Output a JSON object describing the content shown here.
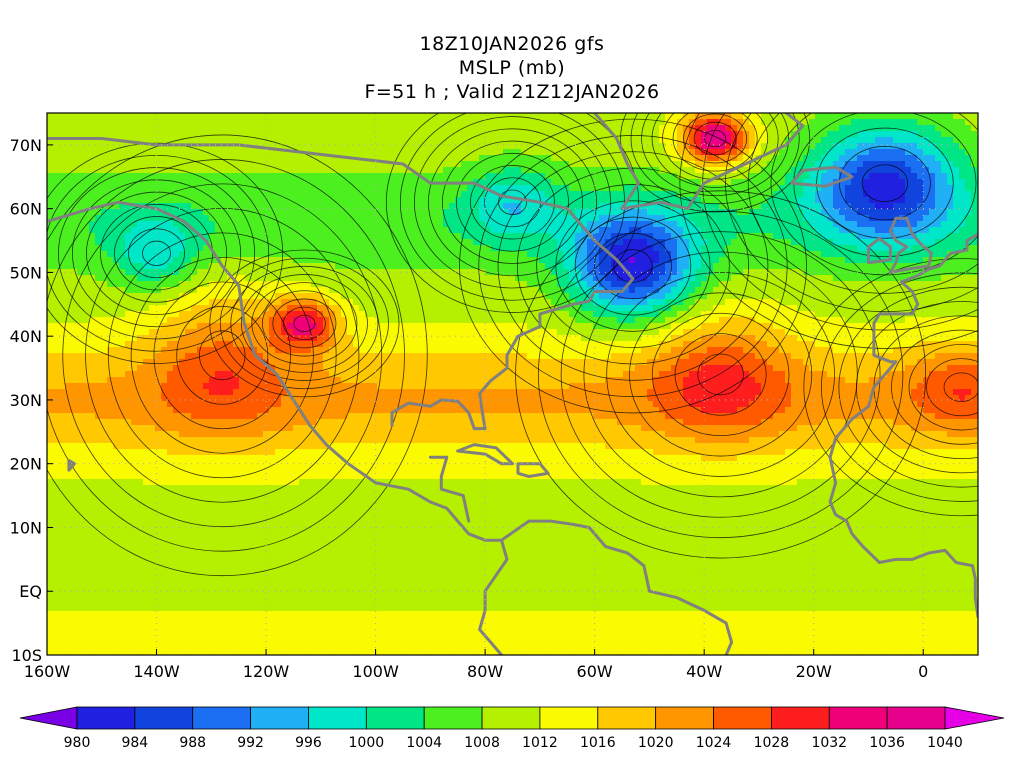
{
  "header": {
    "line1": "18Z10JAN2026 gfs",
    "line2": "MSLP (mb)",
    "line3": "F=51 h ; Valid 21Z12JAN2026"
  },
  "map": {
    "lon_range": [
      -160,
      10
    ],
    "lat_range": [
      -10,
      75
    ],
    "lon_ticks": [
      "160W",
      "140W",
      "120W",
      "100W",
      "80W",
      "60W",
      "40W",
      "20W",
      "0"
    ],
    "lat_ticks": [
      "10S",
      "EQ",
      "10N",
      "20N",
      "30N",
      "40N",
      "50N",
      "60N",
      "70N"
    ],
    "pressure_centers": [
      {
        "type": "low",
        "lon": -53,
        "lat": 51,
        "mb": 980
      },
      {
        "type": "low",
        "lon": -7,
        "lat": 64,
        "mb": 982
      },
      {
        "type": "high",
        "lon": -38,
        "lat": 71,
        "mb": 1038
      },
      {
        "type": "high",
        "lon": -37,
        "lat": 34,
        "mb": 1030
      },
      {
        "type": "high",
        "lon": -113,
        "lat": 42,
        "mb": 1032
      },
      {
        "type": "high",
        "lon": -128,
        "lat": 37,
        "mb": 1026
      },
      {
        "type": "low",
        "lon": -75,
        "lat": 61,
        "mb": 996
      },
      {
        "type": "low",
        "lon": -140,
        "lat": 53,
        "mb": 996
      },
      {
        "type": "high",
        "lon": 7,
        "lat": 32,
        "mb": 1028
      }
    ]
  },
  "colorbar": {
    "levels": [
      "980",
      "984",
      "988",
      "992",
      "996",
      "1000",
      "1004",
      "1008",
      "1012",
      "1016",
      "1020",
      "1024",
      "1028",
      "1032",
      "1036",
      "1040"
    ],
    "colors": [
      "#7a00e6",
      "#2020e0",
      "#1144dd",
      "#1a6ff2",
      "#20b0f5",
      "#00e6c8",
      "#00e686",
      "#4cf01e",
      "#b4f000",
      "#fafa00",
      "#ffc800",
      "#ff9600",
      "#ff5a00",
      "#ff1e1e",
      "#f00078",
      "#e6008c",
      "#e600e6"
    ]
  }
}
